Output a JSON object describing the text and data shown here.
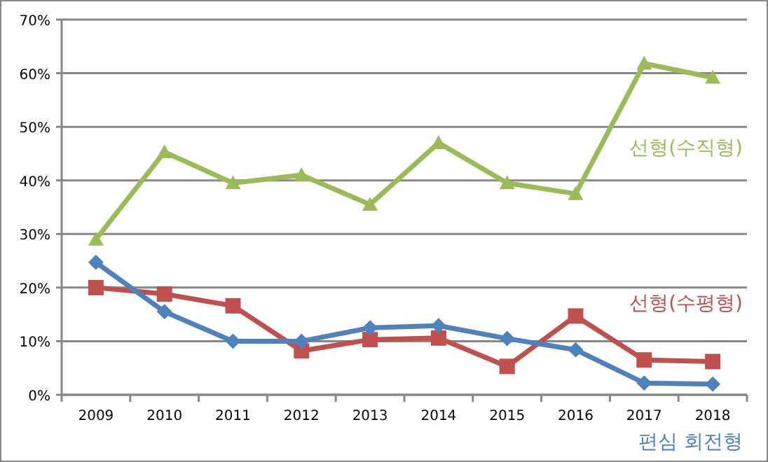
{
  "chart_data": {
    "type": "line",
    "categories": [
      "2009",
      "2010",
      "2011",
      "2012",
      "2013",
      "2014",
      "2015",
      "2016",
      "2017",
      "2018"
    ],
    "series": [
      {
        "name": "선형(수직형)",
        "color": "#9bbb59",
        "marker": "triangle",
        "values": [
          29,
          45.3,
          39.5,
          41,
          35.5,
          47,
          39.5,
          37.5,
          61.8,
          59.2
        ]
      },
      {
        "name": "선형(수평형)",
        "color": "#c0504d",
        "marker": "square",
        "values": [
          20,
          18.8,
          16.6,
          8.2,
          10.3,
          10.6,
          5.3,
          14.7,
          6.5,
          6.2
        ]
      },
      {
        "name": "편심 회전형",
        "color": "#4f81bd",
        "marker": "diamond",
        "values": [
          24.7,
          15.5,
          10,
          10,
          12.5,
          12.9,
          10.5,
          8.4,
          2.2,
          2.0
        ]
      }
    ],
    "ylim": [
      0,
      70
    ],
    "yticks": [
      {
        "value": 0,
        "label": "0%"
      },
      {
        "value": 10,
        "label": "10%"
      },
      {
        "value": 20,
        "label": "20%"
      },
      {
        "value": 30,
        "label": "30%"
      },
      {
        "value": 40,
        "label": "40%"
      },
      {
        "value": 50,
        "label": "50%"
      },
      {
        "value": 60,
        "label": "60%"
      },
      {
        "value": 70,
        "label": "70%"
      }
    ],
    "grid": "y",
    "legend": false
  }
}
